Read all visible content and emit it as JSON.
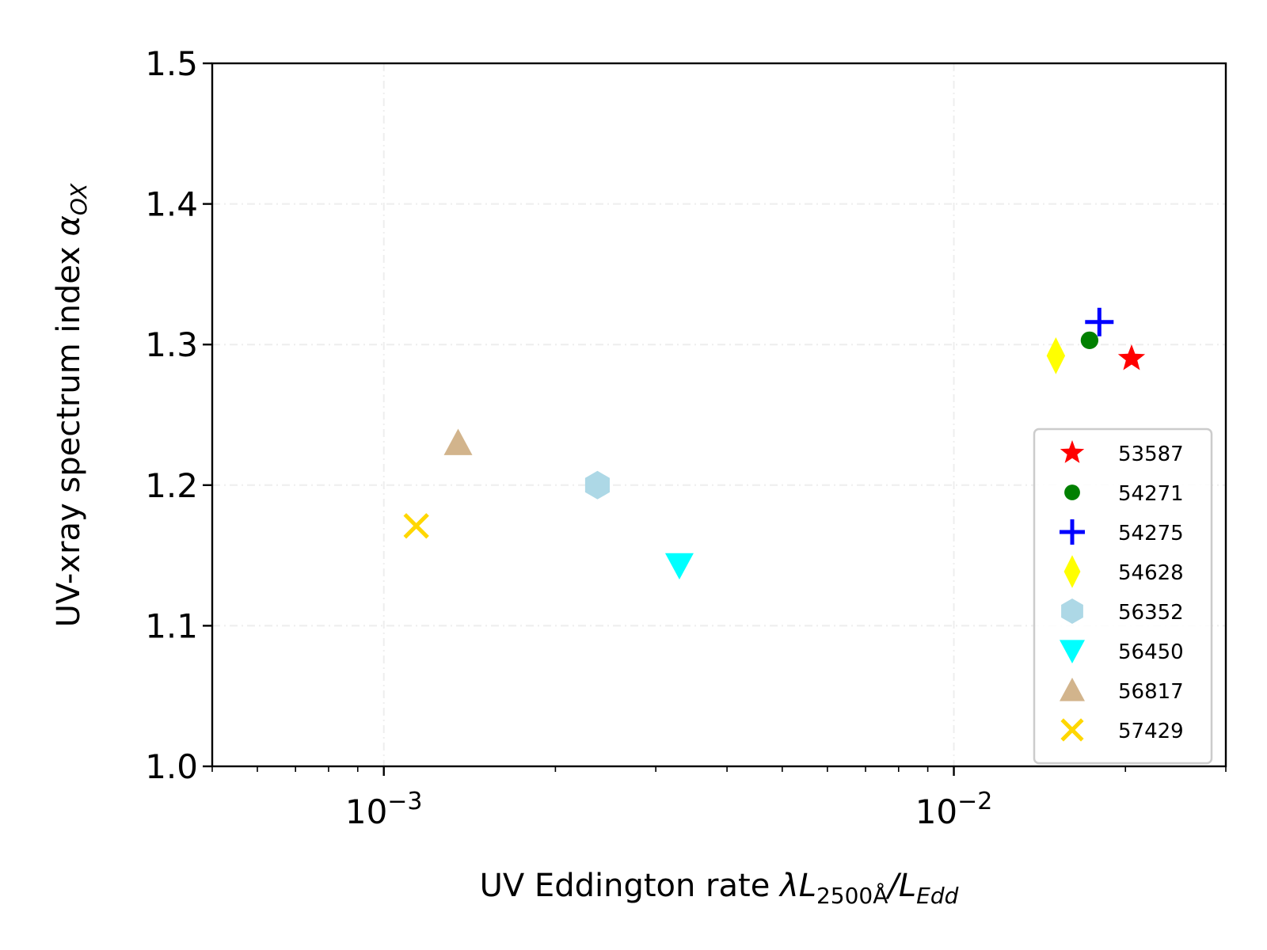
{
  "chart_data": {
    "type": "scatter",
    "title": "",
    "xlabel": {
      "text": "UV Eddington rate ",
      "lambda": "λ",
      "L": "L",
      "sub1": "2500Å",
      "slash": "/L",
      "sub2": "Edd"
    },
    "ylabel": {
      "text": "UV-xray spectrum index ",
      "alpha": "α",
      "sub": "OX"
    },
    "xscale": "log",
    "xlim": [
      0.0005,
      0.03
    ],
    "ylim": [
      1.0,
      1.5
    ],
    "y_ticks": [
      "1.0",
      "1.1",
      "1.2",
      "1.3",
      "1.4",
      "1.5"
    ],
    "x_major_ticks": [
      {
        "value": 0.001,
        "base": "10",
        "exp": "−3"
      },
      {
        "value": 0.01,
        "base": "10",
        "exp": "−2"
      }
    ],
    "grid": true,
    "legend_position": "lower right",
    "series": [
      {
        "name": "53587",
        "marker": "star",
        "color": "#ff0000",
        "x": 0.0205,
        "y": 1.29
      },
      {
        "name": "54271",
        "marker": "circle",
        "color": "#008000",
        "x": 0.0173,
        "y": 1.303
      },
      {
        "name": "54275",
        "marker": "plus",
        "color": "#0000ff",
        "x": 0.018,
        "y": 1.316
      },
      {
        "name": "54628",
        "marker": "thin_diamond",
        "color": "#ffff00",
        "x": 0.0151,
        "y": 1.292
      },
      {
        "name": "56352",
        "marker": "hexagon",
        "color": "#add8e6",
        "x": 0.00237,
        "y": 1.2
      },
      {
        "name": "56450",
        "marker": "triangle_down",
        "color": "#00ffff",
        "x": 0.0033,
        "y": 1.143
      },
      {
        "name": "56817",
        "marker": "triangle_up",
        "color": "#d2b48c",
        "x": 0.00135,
        "y": 1.23
      },
      {
        "name": "57429",
        "marker": "x",
        "color": "#ffd700",
        "x": 0.00114,
        "y": 1.171
      }
    ]
  }
}
